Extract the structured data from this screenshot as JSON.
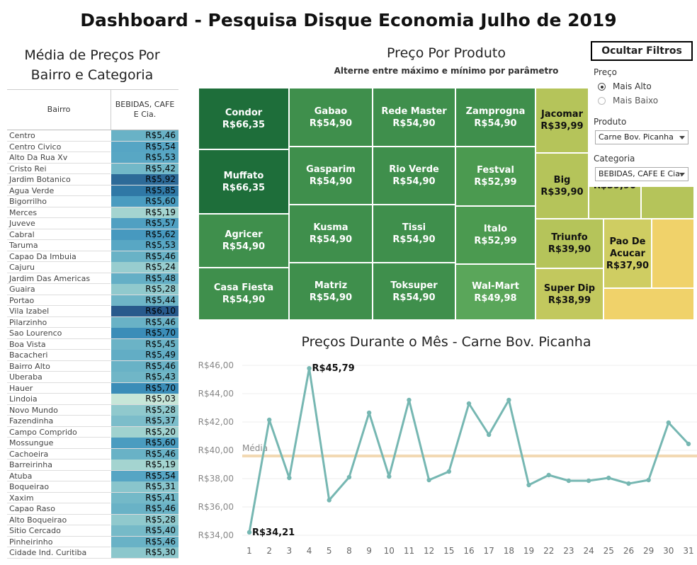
{
  "title": "Dashboard - Pesquisa Disque Economia Julho de 2019",
  "left_panel": {
    "title_line1": "Média de Preços Por",
    "title_line2": "Bairro e Categoria",
    "col_bairro": "Bairro",
    "col_category_line1": "BEBIDAS, CAFE",
    "col_category_line2": "E Cia.",
    "rows": [
      {
        "name": "Centro",
        "value": "R$5,46",
        "color": "#69b2c6"
      },
      {
        "name": "Centro Civico",
        "value": "R$5,54",
        "color": "#56a5c4"
      },
      {
        "name": "Alto Da Rua Xv",
        "value": "R$5,53",
        "color": "#58a7c4"
      },
      {
        "name": "Cristo Rei",
        "value": "R$5,42",
        "color": "#72b8c8"
      },
      {
        "name": "Jardim Botanico",
        "value": "R$5,92",
        "color": "#2d6a98"
      },
      {
        "name": "Agua Verde",
        "value": "R$5,85",
        "color": "#2f78a6"
      },
      {
        "name": "Bigorrilho",
        "value": "R$5,60",
        "color": "#4a9cc0"
      },
      {
        "name": "Merces",
        "value": "R$5,19",
        "color": "#a4d4d0"
      },
      {
        "name": "Juveve",
        "value": "R$5,57",
        "color": "#50a0c2"
      },
      {
        "name": "Cabral",
        "value": "R$5,62",
        "color": "#4799bf"
      },
      {
        "name": "Taruma",
        "value": "R$5,53",
        "color": "#58a7c4"
      },
      {
        "name": "Capao Da Imbuia",
        "value": "R$5,46",
        "color": "#69b2c6"
      },
      {
        "name": "Cajuru",
        "value": "R$5,24",
        "color": "#98cdcf"
      },
      {
        "name": "Jardim Das Americas",
        "value": "R$5,48",
        "color": "#64afc6"
      },
      {
        "name": "Guaira",
        "value": "R$5,28",
        "color": "#90c9cd"
      },
      {
        "name": "Portao",
        "value": "R$5,44",
        "color": "#6eb5c7"
      },
      {
        "name": "Vila Izabel",
        "value": "R$6,10",
        "color": "#285a8c"
      },
      {
        "name": "Pilarzinho",
        "value": "R$5,46",
        "color": "#69b2c6"
      },
      {
        "name": "Sao Lourenco",
        "value": "R$5,70",
        "color": "#3b8db8"
      },
      {
        "name": "Boa Vista",
        "value": "R$5,45",
        "color": "#6bb3c6"
      },
      {
        "name": "Bacacheri",
        "value": "R$5,49",
        "color": "#62adc5"
      },
      {
        "name": "Bairro Alto",
        "value": "R$5,46",
        "color": "#69b2c6"
      },
      {
        "name": "Uberaba",
        "value": "R$5,43",
        "color": "#70b6c7"
      },
      {
        "name": "Hauer",
        "value": "R$5,70",
        "color": "#3b8db8"
      },
      {
        "name": "Lindoia",
        "value": "R$5,03",
        "color": "#c7e6d8"
      },
      {
        "name": "Novo Mundo",
        "value": "R$5,28",
        "color": "#90c9cd"
      },
      {
        "name": "Fazendinha",
        "value": "R$5,37",
        "color": "#7cbdca"
      },
      {
        "name": "Campo Comprido",
        "value": "R$5,20",
        "color": "#a0d2cf"
      },
      {
        "name": "Mossungue",
        "value": "R$5,60",
        "color": "#4a9cc0"
      },
      {
        "name": "Cachoeira",
        "value": "R$5,46",
        "color": "#69b2c6"
      },
      {
        "name": "Barreirinha",
        "value": "R$5,19",
        "color": "#a4d4d0"
      },
      {
        "name": "Atuba",
        "value": "R$5,54",
        "color": "#56a5c4"
      },
      {
        "name": "Boqueirao",
        "value": "R$5,31",
        "color": "#89c5cc"
      },
      {
        "name": "Xaxim",
        "value": "R$5,41",
        "color": "#74b9c8"
      },
      {
        "name": "Capao Raso",
        "value": "R$5,46",
        "color": "#69b2c6"
      },
      {
        "name": "Alto Boqueirao",
        "value": "R$5,28",
        "color": "#90c9cd"
      },
      {
        "name": "Sitio Cercado",
        "value": "R$5,40",
        "color": "#76bac8"
      },
      {
        "name": "Pinheirinho",
        "value": "R$5,46",
        "color": "#69b2c6"
      },
      {
        "name": "Cidade Ind. Curitiba",
        "value": "R$5,30",
        "color": "#8cc7cc"
      }
    ]
  },
  "treemap": {
    "title": "Preço Por Produto",
    "subtitle": "Alterne entre máximo e mínimo por parâmetro",
    "tiles": [
      {
        "name": "Condor",
        "value": "R$66,35",
        "color": "#1e6e3a"
      },
      {
        "name": "Muffato",
        "value": "R$66,35",
        "color": "#1e6e3a"
      },
      {
        "name": "Agricer",
        "value": "R$54,90",
        "color": "#3f8f4c"
      },
      {
        "name": "Casa Fiesta",
        "value": "R$54,90",
        "color": "#3f8f4c"
      },
      {
        "name": "Gabao",
        "value": "R$54,90",
        "color": "#3f8f4c"
      },
      {
        "name": "Gasparim",
        "value": "R$54,90",
        "color": "#3f8f4c"
      },
      {
        "name": "Kusma",
        "value": "R$54,90",
        "color": "#3f8f4c"
      },
      {
        "name": "Matriz",
        "value": "R$54,90",
        "color": "#3f8f4c"
      },
      {
        "name": "Rede Master",
        "value": "R$54,90",
        "color": "#3f8f4c"
      },
      {
        "name": "Rio Verde",
        "value": "R$54,90",
        "color": "#3f8f4c"
      },
      {
        "name": "Tissi",
        "value": "R$54,90",
        "color": "#3f8f4c"
      },
      {
        "name": "Toksuper",
        "value": "R$54,90",
        "color": "#3f8f4c"
      },
      {
        "name": "Zamprogna",
        "value": "R$54,90",
        "color": "#3f8f4c"
      },
      {
        "name": "Festval",
        "value": "R$52,99",
        "color": "#4b9a50"
      },
      {
        "name": "Italo",
        "value": "R$52,99",
        "color": "#4b9a50"
      },
      {
        "name": "Wal-Mart",
        "value": "R$49,98",
        "color": "#5aa65a"
      },
      {
        "name": "Jacomar",
        "value": "R$39,99",
        "color": "#b5c45a"
      },
      {
        "name": "Big",
        "value": "R$39,90",
        "color": "#b5c45a"
      },
      {
        "name": "R$39,90",
        "value": "",
        "color": "#b5c45a"
      },
      {
        "name": "",
        "value": "",
        "color": "#b5c45a"
      },
      {
        "name": "Triunfo",
        "value": "R$39,90",
        "color": "#b5c45a"
      },
      {
        "name": "Super Dip",
        "value": "R$38,99",
        "color": "#c2c85e"
      },
      {
        "name": "Pao De Acucar",
        "value": "R$37,90",
        "color": "#cfcd62"
      },
      {
        "name": "",
        "value": "",
        "color": "#f0d26a"
      },
      {
        "name": "",
        "value": "",
        "color": "#f0d26a"
      }
    ]
  },
  "filters": {
    "hide_button": "Ocultar Filtros",
    "price_label": "Preço",
    "price_options": [
      "Mais Alto",
      "Mais Baixo"
    ],
    "product_label": "Produto",
    "product_value": "Carne Bov. Picanha",
    "category_label": "Categoria",
    "category_value": "BEBIDAS, CAFE E Cia."
  },
  "line_chart": {
    "title": "Preços Durante o Mês - Carne Bov. Picanha"
  },
  "chart_data": {
    "type": "line",
    "title": "Preços Durante o Mês - Carne Bov. Picanha",
    "categories": [
      "1",
      "2",
      "3",
      "4",
      "5",
      "8",
      "9",
      "10",
      "11",
      "12",
      "15",
      "16",
      "17",
      "18",
      "19",
      "22",
      "23",
      "24",
      "25",
      "26",
      "29",
      "30",
      "31"
    ],
    "values": [
      34.21,
      42.15,
      38.05,
      45.79,
      36.48,
      38.1,
      42.65,
      38.15,
      43.55,
      37.9,
      38.5,
      43.3,
      41.1,
      43.55,
      37.55,
      38.25,
      37.85,
      37.85,
      38.05,
      37.65,
      37.9,
      41.95,
      40.45
    ],
    "ylim": [
      34,
      46
    ],
    "yticks": [
      "R$34,00",
      "R$36,00",
      "R$38,00",
      "R$40,00",
      "R$42,00",
      "R$44,00",
      "R$46,00"
    ],
    "ytick_values": [
      34,
      36,
      38,
      40,
      42,
      44,
      46
    ],
    "reference_line": {
      "label": "Média",
      "value": 39.6
    },
    "annotations": [
      {
        "index": 0,
        "label": "R$34,21"
      },
      {
        "index": 3,
        "label": "R$45,79"
      }
    ],
    "line_color": "#76b7b2",
    "ref_color": "#f2d9b3",
    "grid": true
  }
}
